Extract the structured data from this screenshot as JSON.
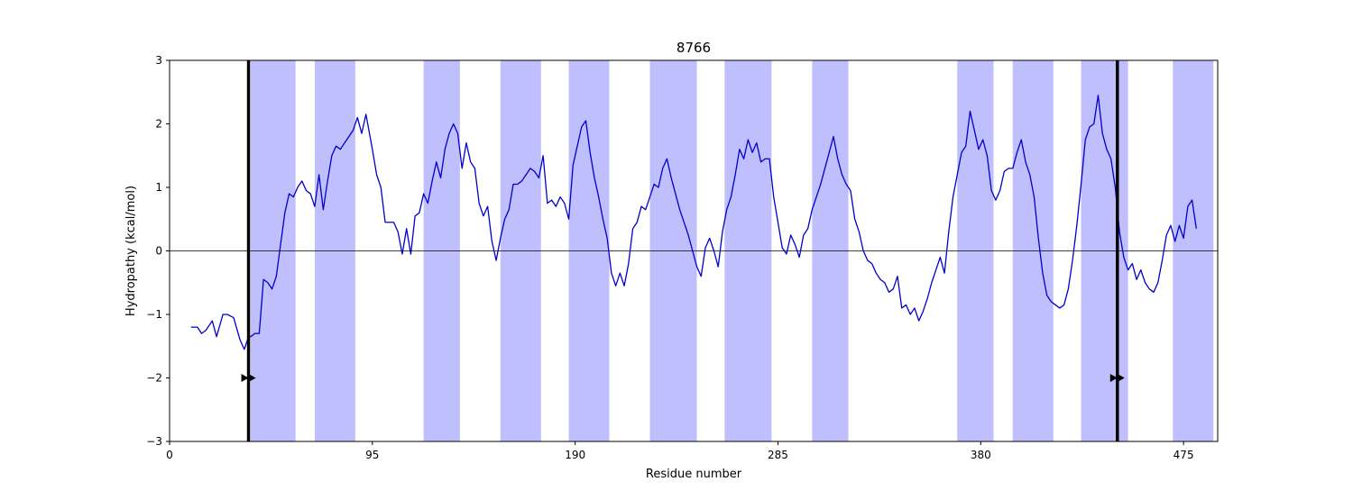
{
  "chart_data": {
    "type": "line",
    "title": "8766",
    "xlabel": "Residue number",
    "ylabel": "Hydropathy (kcal/mol)",
    "xlim": [
      0,
      491
    ],
    "ylim": [
      -3,
      3
    ],
    "xticks": [
      0,
      95,
      190,
      285,
      380,
      475
    ],
    "yticks": [
      -3,
      -2,
      -1,
      0,
      1,
      2,
      3
    ],
    "xtick_labels": [
      "0",
      "95",
      "190",
      "285",
      "380",
      "475"
    ],
    "ytick_labels": [
      "−3",
      "−2",
      "−1",
      "0",
      "1",
      "2",
      "3"
    ],
    "grid": false,
    "line_color": "#0000cd",
    "band_color": "#bfbffe",
    "zero_line": true,
    "shaded_regions": [
      [
        38,
        59
      ],
      [
        68,
        87
      ],
      [
        119,
        136
      ],
      [
        155,
        174
      ],
      [
        187,
        206
      ],
      [
        225,
        247
      ],
      [
        260,
        282
      ],
      [
        301,
        318
      ],
      [
        369,
        386
      ],
      [
        395,
        414
      ],
      [
        427,
        449
      ],
      [
        470,
        489
      ]
    ],
    "vertical_markers": [
      37,
      444
    ],
    "arrow_markers": [
      {
        "x": 37,
        "y": -2,
        "direction": "right"
      },
      {
        "x": 444,
        "y": -2,
        "direction": "right"
      }
    ],
    "series": [
      {
        "x": [
          10,
          13,
          15,
          17,
          20,
          22,
          25,
          27,
          30,
          33,
          35,
          37,
          38,
          40,
          42,
          44,
          46,
          48,
          50,
          52,
          54,
          56,
          58,
          60,
          62,
          64,
          66,
          68,
          70,
          72,
          74,
          76,
          78,
          80,
          82,
          84,
          86,
          88,
          90,
          92,
          95,
          97,
          99,
          101,
          103,
          105,
          107,
          109,
          111,
          113,
          115,
          117,
          119,
          121,
          123,
          125,
          127,
          129,
          131,
          133,
          135,
          137,
          139,
          141,
          143,
          145,
          147,
          149,
          151,
          153,
          155,
          157,
          159,
          161,
          163,
          165,
          167,
          169,
          171,
          173,
          175,
          177,
          179,
          181,
          183,
          185,
          187,
          189,
          191,
          193,
          195,
          197,
          199,
          201,
          203,
          205,
          207,
          209,
          211,
          213,
          215,
          217,
          219,
          221,
          223,
          225,
          227,
          229,
          231,
          233,
          235,
          237,
          239,
          241,
          243,
          245,
          247,
          249,
          251,
          253,
          255,
          257,
          259,
          261,
          263,
          265,
          267,
          269,
          271,
          273,
          275,
          277,
          279,
          281,
          283,
          285,
          287,
          289,
          291,
          293,
          295,
          297,
          299,
          301,
          303,
          305,
          307,
          309,
          311,
          313,
          315,
          317,
          319,
          321,
          323,
          325,
          327,
          329,
          331,
          333,
          335,
          337,
          339,
          341,
          343,
          345,
          347,
          349,
          351,
          353,
          355,
          357,
          359,
          361,
          363,
          365,
          367,
          369,
          371,
          373,
          375,
          377,
          379,
          381,
          383,
          385,
          387,
          389,
          391,
          393,
          395,
          397,
          399,
          401,
          403,
          405,
          407,
          409,
          411,
          413,
          415,
          417,
          419,
          421,
          423,
          425,
          427,
          429,
          431,
          433,
          435,
          437,
          439,
          441,
          443,
          445,
          447,
          449,
          451,
          453,
          455,
          457,
          459,
          461,
          463,
          465,
          467,
          469,
          471,
          473,
          475,
          477,
          479,
          481
        ],
        "values": [
          -1.2,
          -1.2,
          -1.3,
          -1.25,
          -1.1,
          -1.35,
          -1.0,
          -1.0,
          -1.05,
          -1.4,
          -1.55,
          -1.35,
          -1.35,
          -1.3,
          -1.3,
          -0.45,
          -0.5,
          -0.6,
          -0.4,
          0.1,
          0.6,
          0.9,
          0.85,
          1.0,
          1.1,
          0.95,
          0.9,
          0.7,
          1.2,
          0.65,
          1.1,
          1.5,
          1.65,
          1.6,
          1.7,
          1.8,
          1.9,
          2.1,
          1.85,
          2.15,
          1.6,
          1.2,
          1.0,
          0.45,
          0.45,
          0.45,
          0.3,
          -0.05,
          0.35,
          -0.05,
          0.55,
          0.6,
          0.9,
          0.75,
          1.1,
          1.4,
          1.15,
          1.6,
          1.85,
          2.0,
          1.85,
          1.3,
          1.7,
          1.4,
          1.3,
          0.75,
          0.55,
          0.7,
          0.15,
          -0.15,
          0.2,
          0.5,
          0.65,
          1.05,
          1.05,
          1.1,
          1.2,
          1.3,
          1.25,
          1.15,
          1.5,
          0.75,
          0.8,
          0.7,
          0.85,
          0.75,
          0.5,
          1.35,
          1.65,
          1.95,
          2.05,
          1.55,
          1.15,
          0.85,
          0.5,
          0.2,
          -0.35,
          -0.55,
          -0.35,
          -0.55,
          -0.2,
          0.35,
          0.45,
          0.7,
          0.65,
          0.85,
          1.05,
          1.0,
          1.3,
          1.45,
          1.15,
          0.9,
          0.65,
          0.45,
          0.25,
          0.0,
          -0.25,
          -0.4,
          0.05,
          0.2,
          0.0,
          -0.25,
          0.3,
          0.65,
          0.85,
          1.2,
          1.6,
          1.45,
          1.75,
          1.55,
          1.7,
          1.4,
          1.45,
          1.45,
          0.85,
          0.45,
          0.05,
          -0.05,
          0.25,
          0.1,
          -0.1,
          0.25,
          0.35,
          0.65,
          0.85,
          1.05,
          1.3,
          1.55,
          1.8,
          1.45,
          1.2,
          1.05,
          0.95,
          0.5,
          0.3,
          0.0,
          -0.15,
          -0.2,
          -0.35,
          -0.45,
          -0.5,
          -0.65,
          -0.6,
          -0.4,
          -0.9,
          -0.85,
          -1.0,
          -0.9,
          -1.1,
          -0.95,
          -0.75,
          -0.5,
          -0.3,
          -0.1,
          -0.35,
          0.3,
          0.85,
          1.2,
          1.55,
          1.65,
          2.2,
          1.9,
          1.6,
          1.75,
          1.5,
          0.95,
          0.8,
          0.95,
          1.25,
          1.3,
          1.3,
          1.55,
          1.75,
          1.4,
          1.2,
          0.85,
          0.2,
          -0.35,
          -0.7,
          -0.8,
          -0.85,
          -0.9,
          -0.85,
          -0.6,
          -0.15,
          0.4,
          1.05,
          1.75,
          1.95,
          2.0,
          2.45,
          1.85,
          1.6,
          1.45,
          1.0,
          0.3,
          -0.1,
          -0.3,
          -0.2,
          -0.45,
          -0.3,
          -0.5,
          -0.6,
          -0.65,
          -0.5,
          -0.15,
          0.25,
          0.4,
          0.15,
          0.4,
          0.2,
          0.7,
          0.8,
          0.35
        ]
      }
    ]
  }
}
